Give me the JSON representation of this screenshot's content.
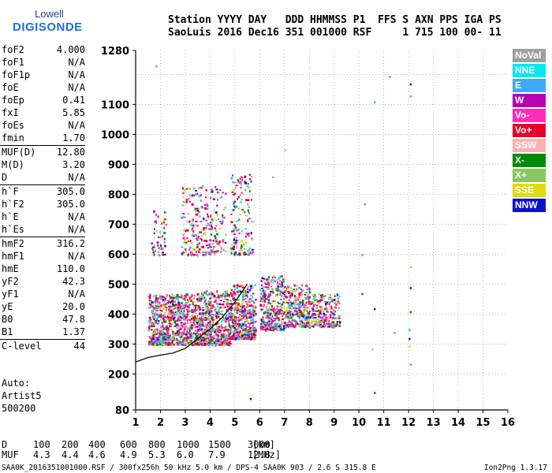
{
  "logo": {
    "top": "Lowell",
    "bottom": "DIGISONDE"
  },
  "header": {
    "line1": "Station YYYY DAY   DDD HHMMSS P1  FFS S AXN PPS IGA PS",
    "line2": "SaoLuis 2016 Dec16 351 001000 RSF     1 715 100 00- 11"
  },
  "params": [
    [
      {
        "name": "foF2",
        "value": "4.000"
      },
      {
        "name": "foF1",
        "value": "N/A"
      },
      {
        "name": "foF1p",
        "value": "N/A"
      },
      {
        "name": "foE",
        "value": "N/A"
      },
      {
        "name": "foEp",
        "value": "0.41"
      },
      {
        "name": "fxI",
        "value": "5.85"
      },
      {
        "name": "foEs",
        "value": "N/A"
      },
      {
        "name": "fmin",
        "value": "1.70"
      }
    ],
    [
      {
        "name": "MUF(D)",
        "value": "12.80"
      },
      {
        "name": "M(D)",
        "value": "3.20"
      },
      {
        "name": "D",
        "value": "N/A"
      }
    ],
    [
      {
        "name": "h`F",
        "value": "305.0"
      },
      {
        "name": "h`F2",
        "value": "305.0"
      },
      {
        "name": "h`E",
        "value": "N/A"
      },
      {
        "name": "h`Es",
        "value": "N/A"
      }
    ],
    [
      {
        "name": "hmF2",
        "value": "316.2"
      },
      {
        "name": "hmF1",
        "value": "N/A"
      },
      {
        "name": "hmE",
        "value": "110.0"
      },
      {
        "name": "yF2",
        "value": "42.3"
      },
      {
        "name": "yF1",
        "value": "N/A"
      },
      {
        "name": "yE",
        "value": "20.0"
      },
      {
        "name": "B0",
        "value": "47.8"
      },
      {
        "name": "B1",
        "value": "1.37"
      }
    ],
    [
      {
        "name": "C-level",
        "value": "44"
      }
    ]
  ],
  "auto": {
    "line1": "Auto:",
    "line2": "Artist5",
    "line3": "500200"
  },
  "legend": [
    {
      "label": "NoVal",
      "color": "#a0a0a0"
    },
    {
      "label": "NNE",
      "color": "#00e8f0"
    },
    {
      "label": "E",
      "color": "#40a8f8"
    },
    {
      "label": "W",
      "color": "#b800b0"
    },
    {
      "label": "Vo-",
      "color": "#ff2eb8"
    },
    {
      "label": "Vo+",
      "color": "#e8002a"
    },
    {
      "label": "SSW",
      "color": "#ffb0b0"
    },
    {
      "label": "X-",
      "color": "#008c00"
    },
    {
      "label": "X+",
      "color": "#88c860"
    },
    {
      "label": "SSE",
      "color": "#dcdc10"
    },
    {
      "label": "NNW",
      "color": "#1010c8"
    }
  ],
  "chart_data": {
    "type": "scatter",
    "x_ticks": [
      "1",
      "2",
      "3",
      "4",
      "5",
      "6",
      "7",
      "8",
      "9",
      "10",
      "11",
      "12",
      "13",
      "14",
      "15",
      "16"
    ],
    "y_ticks": [
      "80",
      "200",
      "300",
      "400",
      "500",
      "600",
      "700",
      "800",
      "900",
      "1000",
      "1100",
      "1280"
    ],
    "x_range": [
      1,
      16
    ],
    "y_range": [
      80,
      1280
    ],
    "grid": true,
    "legend_placement": "right",
    "trace": [
      {
        "f": 1.0,
        "h": 240
      },
      {
        "f": 1.5,
        "h": 255
      },
      {
        "f": 2.0,
        "h": 263
      },
      {
        "f": 2.5,
        "h": 270
      },
      {
        "f": 3.0,
        "h": 285
      },
      {
        "f": 3.3,
        "h": 305
      },
      {
        "f": 3.6,
        "h": 325
      },
      {
        "f": 4.0,
        "h": 350
      },
      {
        "f": 4.5,
        "h": 390
      },
      {
        "f": 5.0,
        "h": 440
      },
      {
        "f": 5.5,
        "h": 500
      }
    ],
    "regions": [
      {
        "f": [
          1.5,
          2.4
        ],
        "h": [
          300,
          470
        ],
        "n": 420
      },
      {
        "f": [
          2.4,
          3.6
        ],
        "h": [
          300,
          470
        ],
        "n": 520
      },
      {
        "f": [
          3.6,
          4.8
        ],
        "h": [
          300,
          480
        ],
        "n": 560
      },
      {
        "f": [
          4.8,
          5.8
        ],
        "h": [
          320,
          500
        ],
        "n": 480
      },
      {
        "f": [
          6.0,
          7.0
        ],
        "h": [
          350,
          530
        ],
        "n": 380
      },
      {
        "f": [
          7.0,
          8.0
        ],
        "h": [
          360,
          500
        ],
        "n": 300
      },
      {
        "f": [
          8.0,
          9.2
        ],
        "h": [
          360,
          470
        ],
        "n": 260
      },
      {
        "f": [
          2.8,
          4.6
        ],
        "h": [
          600,
          830
        ],
        "n": 260
      },
      {
        "f": [
          4.8,
          5.7
        ],
        "h": [
          600,
          870
        ],
        "n": 160
      },
      {
        "f": [
          1.6,
          2.2
        ],
        "h": [
          600,
          750
        ],
        "n": 50
      }
    ],
    "scatter_points": [
      {
        "f": 1.8,
        "h": 1230,
        "c": "E"
      },
      {
        "f": 11.2,
        "h": 1195,
        "c": "E"
      },
      {
        "f": 12.05,
        "h": 1170,
        "c": "NNW"
      },
      {
        "f": 12.05,
        "h": 1130,
        "c": "E"
      },
      {
        "f": 10.6,
        "h": 1110,
        "c": "E"
      },
      {
        "f": 10.2,
        "h": 770,
        "c": "E"
      },
      {
        "f": 12.05,
        "h": 560,
        "c": "X+"
      },
      {
        "f": 12.05,
        "h": 490,
        "c": "NNW"
      },
      {
        "f": 10.6,
        "h": 420,
        "c": "NNW"
      },
      {
        "f": 12.05,
        "h": 410,
        "c": "X-"
      },
      {
        "f": 12.0,
        "h": 350,
        "c": "E"
      },
      {
        "f": 12.0,
        "h": 320,
        "c": "NNW"
      },
      {
        "f": 11.4,
        "h": 340,
        "c": "E"
      },
      {
        "f": 12.0,
        "h": 295,
        "c": "SSE"
      },
      {
        "f": 12.05,
        "h": 235,
        "c": "E"
      },
      {
        "f": 10.5,
        "h": 285,
        "c": "SSE"
      },
      {
        "f": 10.6,
        "h": 140,
        "c": "X-"
      },
      {
        "f": 5.6,
        "h": 120,
        "c": "NNW"
      },
      {
        "f": 7.0,
        "h": 950,
        "c": "SSE"
      },
      {
        "f": 6.5,
        "h": 860,
        "c": "X+"
      },
      {
        "f": 10.1,
        "h": 470,
        "c": "X-"
      },
      {
        "f": 10.1,
        "h": 600,
        "c": "E"
      }
    ]
  },
  "dmuf": {
    "d_label": "D",
    "d_values": [
      "100",
      "200",
      "400",
      "600",
      "800",
      "1000",
      "1500",
      "3000",
      "[km]"
    ],
    "muf_label": "MUF",
    "muf_values": [
      "4.3",
      "4.4",
      "4.6",
      "4.9",
      "5.3",
      "6.0",
      "7.9",
      "12.8",
      "[MHz]"
    ]
  },
  "footer": {
    "left": "SAA0K_2016351001000.RSF / 300fx256h 50 kHz 5.0 km / DPS-4 SAA0K 903 / 2.6 S 315.8 E",
    "right": "Ion2Png 1.3.17"
  }
}
